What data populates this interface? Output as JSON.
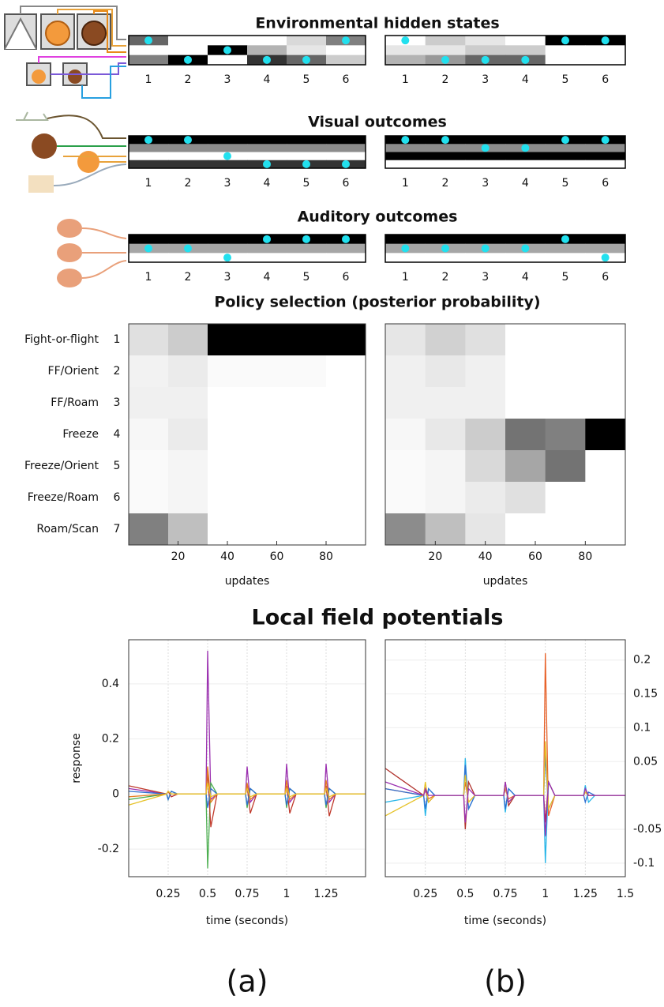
{
  "panel_labels": [
    "(a)",
    "(b)"
  ],
  "chart_data": [
    {
      "type": "raster",
      "title": "Environmental hidden states",
      "categories": [
        1,
        2,
        3,
        4,
        5,
        6
      ],
      "panels": [
        {
          "values": [
            [
              0.6,
              0,
              0,
              0,
              0.15,
              0.5
            ],
            [
              0,
              0,
              1,
              0.3,
              0.1,
              0
            ],
            [
              0.5,
              1,
              0,
              0.8,
              0.6,
              0.2
            ]
          ],
          "dots": [
            0,
            2,
            1,
            2,
            2,
            0
          ]
        },
        {
          "values": [
            [
              0,
              0.2,
              0.1,
              0,
              1,
              1
            ],
            [
              0.1,
              0.1,
              0.2,
              0.2,
              0,
              0
            ],
            [
              0.3,
              0.4,
              0.6,
              0.6,
              0,
              0
            ]
          ],
          "dots": [
            0,
            2,
            2,
            2,
            0,
            0
          ]
        }
      ]
    },
    {
      "type": "raster",
      "title": "Visual outcomes",
      "categories": [
        1,
        2,
        3,
        4,
        5,
        6
      ],
      "panels": [
        {
          "values": [
            [
              1,
              1,
              1,
              1,
              1,
              1
            ],
            [
              0.45,
              0.45,
              0.45,
              0.45,
              0.45,
              0.45
            ],
            [
              0,
              0,
              0,
              0,
              0,
              0
            ],
            [
              0.8,
              0.8,
              0.8,
              0.8,
              0.8,
              0.8
            ]
          ],
          "dots": [
            0,
            0,
            2,
            3,
            3,
            3
          ]
        },
        {
          "values": [
            [
              1,
              1,
              1,
              1,
              1,
              1
            ],
            [
              0.45,
              0.45,
              0.45,
              0.45,
              0.45,
              0.45
            ],
            [
              1,
              1,
              1,
              1,
              1,
              1
            ],
            [
              0,
              0,
              0,
              0,
              0,
              0
            ]
          ],
          "dots": [
            0,
            0,
            1,
            1,
            0,
            0
          ]
        }
      ]
    },
    {
      "type": "raster",
      "title": "Auditory outcomes",
      "categories": [
        1,
        2,
        3,
        4,
        5,
        6
      ],
      "panels": [
        {
          "values": [
            [
              1,
              1,
              1,
              1,
              1,
              1
            ],
            [
              0.35,
              0.35,
              0.35,
              0.35,
              0.35,
              0.35
            ],
            [
              0,
              0,
              0,
              0,
              0,
              0
            ]
          ],
          "dots": [
            1,
            1,
            2,
            0,
            0,
            0
          ]
        },
        {
          "values": [
            [
              1,
              1,
              1,
              1,
              1,
              1
            ],
            [
              0.35,
              0.35,
              0.35,
              0.35,
              0.35,
              0.35
            ],
            [
              0,
              0,
              0,
              0,
              0,
              0
            ]
          ],
          "dots": [
            1,
            1,
            1,
            1,
            0,
            2
          ]
        }
      ]
    },
    {
      "type": "heatmap",
      "title": "Policy selection (posterior probability)",
      "categories": [
        "Fight-or-flight",
        "FF/Orient",
        "FF/Roam",
        "Freeze",
        "Freeze/Orient",
        "Freeze/Roam",
        "Roam/Scan"
      ],
      "category_numbers": [
        1,
        2,
        3,
        4,
        5,
        6,
        7
      ],
      "xlabel": "updates",
      "xlim": [
        0,
        96
      ],
      "xticks": [
        20,
        40,
        60,
        80
      ],
      "bins": [
        0,
        16,
        32,
        48,
        64,
        80,
        96
      ],
      "panels": [
        {
          "values": [
            [
              0.12,
              0.2,
              1,
              1,
              1,
              1
            ],
            [
              0.05,
              0.08,
              0.02,
              0.02,
              0.02,
              0
            ],
            [
              0.06,
              0.06,
              0,
              0,
              0,
              0
            ],
            [
              0.03,
              0.08,
              0,
              0,
              0,
              0
            ],
            [
              0.02,
              0.04,
              0,
              0,
              0,
              0
            ],
            [
              0.02,
              0.04,
              0,
              0,
              0,
              0
            ],
            [
              0.5,
              0.25,
              0,
              0,
              0,
              0
            ]
          ]
        },
        {
          "values": [
            [
              0.1,
              0.18,
              0.12,
              0,
              0,
              0
            ],
            [
              0.06,
              0.09,
              0.06,
              0,
              0,
              0
            ],
            [
              0.06,
              0.06,
              0.06,
              0,
              0,
              0
            ],
            [
              0.03,
              0.09,
              0.2,
              0.55,
              0.5,
              1
            ],
            [
              0.02,
              0.04,
              0.15,
              0.35,
              0.55,
              0
            ],
            [
              0.02,
              0.04,
              0.08,
              0.12,
              0,
              0
            ],
            [
              0.45,
              0.25,
              0.1,
              0,
              0,
              0
            ]
          ]
        }
      ]
    },
    {
      "type": "line",
      "title": "Local field potentials",
      "xlabel": "time (seconds)",
      "grid": true,
      "x": [
        0,
        0.24,
        0.25,
        0.27,
        0.31,
        0.49,
        0.5,
        0.52,
        0.56,
        0.74,
        0.75,
        0.77,
        0.81,
        0.99,
        1,
        1.02,
        1.06,
        1.24,
        1.25,
        1.27,
        1.31,
        1.5
      ],
      "panels": [
        {
          "ylabel": "response",
          "xlim": [
            0,
            1.5
          ],
          "xticks": [
            0.25,
            0.5,
            0.75,
            1,
            1.25
          ],
          "ylim": [
            -0.3,
            0.56
          ],
          "yticks": [
            -0.2,
            0,
            0.2,
            0.4
          ],
          "series": [
            {
              "color": "#9b30b0",
              "values": [
                0.02,
                0,
                0.01,
                -0.01,
                0,
                0,
                0.52,
                -0.02,
                0,
                0,
                0.1,
                -0.03,
                0,
                0,
                0.11,
                -0.03,
                0,
                0,
                0.11,
                -0.03,
                0,
                0
              ]
            },
            {
              "color": "#4caf50",
              "values": [
                -0.02,
                0,
                -0.02,
                0.01,
                0,
                0,
                -0.27,
                0.04,
                0,
                0,
                -0.05,
                0.02,
                0,
                0,
                -0.05,
                0.02,
                0,
                0,
                -0.05,
                0.02,
                0,
                0
              ]
            },
            {
              "color": "#c0392b",
              "values": [
                0.03,
                0,
                0.01,
                -0.01,
                0,
                0,
                0.08,
                -0.12,
                0,
                0,
                0.03,
                -0.07,
                0,
                0,
                0.03,
                -0.07,
                0,
                0,
                0.03,
                -0.08,
                0,
                0
              ]
            },
            {
              "color": "#2f6fd1",
              "values": [
                0.01,
                0,
                -0.02,
                0.01,
                0,
                0,
                -0.05,
                0.02,
                0,
                0,
                -0.04,
                0.02,
                0,
                0,
                -0.04,
                0.02,
                0,
                0,
                -0.04,
                0.02,
                0,
                0
              ]
            },
            {
              "color": "#e67e22",
              "values": [
                -0.01,
                0,
                0.01,
                0,
                0,
                0,
                0.1,
                -0.03,
                0,
                0,
                0.04,
                -0.02,
                0,
                0,
                0.05,
                -0.02,
                0,
                0,
                0.05,
                -0.02,
                0,
                0
              ]
            },
            {
              "color": "#e6c229",
              "values": [
                -0.04,
                0,
                0.01,
                0,
                0,
                0,
                0.04,
                -0.01,
                0,
                0,
                0.02,
                -0.01,
                0,
                0,
                0.02,
                -0.01,
                0,
                0,
                0.02,
                -0.01,
                0,
                0
              ]
            }
          ]
        },
        {
          "xlim": [
            0,
            1.5
          ],
          "xticks": [
            0.25,
            0.5,
            0.75,
            1,
            1.25,
            1.5
          ],
          "y2lim": [
            -0.12,
            0.23
          ],
          "y2ticks": [
            -0.1,
            -0.05,
            0.05,
            0.1,
            0.15,
            0.2
          ],
          "series": [
            {
              "axis": "y2",
              "color": "#e8622a",
              "values": [
                0.01,
                0,
                0.01,
                -0.005,
                0,
                0,
                0.02,
                -0.01,
                0,
                0,
                0.01,
                -0.005,
                0,
                0,
                0.21,
                -0.03,
                0,
                0,
                0.01,
                0,
                0,
                0
              ]
            },
            {
              "axis": "y2",
              "color": "#29b6e8",
              "values": [
                -0.01,
                0,
                -0.03,
                0.01,
                0,
                0,
                0.055,
                -0.02,
                0,
                0,
                -0.025,
                0.01,
                0,
                0,
                -0.1,
                0.02,
                0,
                0,
                0.015,
                -0.01,
                0,
                0
              ]
            },
            {
              "axis": "y2",
              "color": "#b0302a",
              "values": [
                0.04,
                0,
                0.01,
                -0.01,
                0,
                0,
                -0.05,
                0.02,
                0,
                0,
                0.02,
                -0.015,
                0,
                0,
                -0.04,
                0.02,
                0,
                0,
                0.005,
                0,
                0,
                0
              ]
            },
            {
              "axis": "y2",
              "color": "#2f6fd1",
              "values": [
                0.01,
                0,
                -0.02,
                0.01,
                0,
                0,
                0.045,
                -0.02,
                0,
                0,
                -0.02,
                0.01,
                0,
                0,
                0.06,
                -0.02,
                0,
                0,
                -0.01,
                0.005,
                0,
                0
              ]
            },
            {
              "axis": "y2",
              "color": "#e6c229",
              "values": [
                -0.03,
                0,
                0.02,
                -0.01,
                0,
                0,
                0.03,
                -0.01,
                0,
                0,
                0.015,
                -0.01,
                0,
                0,
                0.08,
                -0.02,
                0,
                0,
                0.005,
                0,
                0,
                0
              ]
            },
            {
              "axis": "y2",
              "color": "#9b30b0",
              "values": [
                0.02,
                0,
                0.01,
                0,
                0,
                0,
                -0.04,
                0.01,
                0,
                0,
                0.02,
                -0.01,
                0,
                0,
                -0.06,
                0.02,
                0,
                0,
                0.01,
                0,
                0,
                0
              ]
            }
          ]
        }
      ]
    }
  ]
}
